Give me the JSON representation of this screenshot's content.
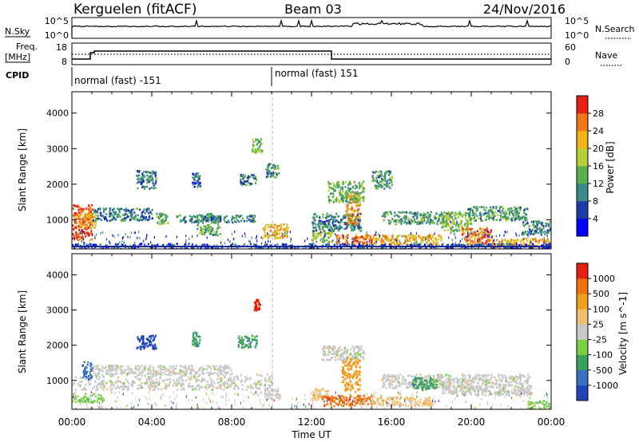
{
  "header": {
    "station": "Kerguelen (fitACF)",
    "beam": "Beam 03",
    "date": "24/Nov/2016"
  },
  "strip_labels": {
    "nsky": "N.Sky",
    "nsearch": "N.Search",
    "freq_line1": "Freq.",
    "freq_line2": "[MHz]",
    "nave": "Nave",
    "cpid": "CPID",
    "nsky_ticks": [
      "10^5",
      "10^0"
    ],
    "nsearch_ticks": [
      "10^5",
      "10^0"
    ],
    "freq_ticks": [
      "18",
      "8"
    ],
    "nave_ticks": [
      "60",
      "0"
    ]
  },
  "cpid_labels": [
    "normal (fast) -151",
    "normal (fast) 151"
  ],
  "chart_data": [
    {
      "type": "heatmap",
      "name": "power",
      "ylabel": "Slant Range [km]",
      "xlabel": "Time UT",
      "ylim": [
        180,
        4600
      ],
      "xlim": [
        0,
        24
      ],
      "x_ticks": [
        "00:00",
        "04:00",
        "08:00",
        "12:00",
        "16:00",
        "20:00",
        "00:00"
      ],
      "y_ticks": [
        "1000",
        "2000",
        "3000",
        "4000"
      ],
      "colorbar": {
        "label": "Power [dB]",
        "ticks": [
          "4",
          "8",
          "12",
          "16",
          "20",
          "24",
          "28"
        ],
        "colors": [
          "#0000ff",
          "#1c3aa8",
          "#3a8a86",
          "#58b04a",
          "#b8d038",
          "#f0b418",
          "#f07818",
          "#e82010"
        ]
      },
      "blobs": [
        {
          "t0": 0.0,
          "t1": 1.0,
          "r0": 450,
          "r1": 1450,
          "v": 28
        },
        {
          "t0": 0.3,
          "t1": 1.2,
          "r0": 800,
          "r1": 1200,
          "v": 22
        },
        {
          "t0": 1.0,
          "t1": 4.0,
          "r0": 1000,
          "r1": 1350,
          "v": 9
        },
        {
          "t0": 3.2,
          "t1": 4.2,
          "r0": 1900,
          "r1": 2400,
          "v": 10
        },
        {
          "t0": 4.2,
          "t1": 4.8,
          "r0": 900,
          "r1": 1200,
          "v": 14
        },
        {
          "t0": 6.2,
          "t1": 7.4,
          "r0": 600,
          "r1": 1200,
          "v": 14
        },
        {
          "t0": 5.2,
          "t1": 9.2,
          "r0": 950,
          "r1": 1150,
          "v": 10
        },
        {
          "t0": 6.0,
          "t1": 6.4,
          "r0": 1950,
          "r1": 2350,
          "v": 8
        },
        {
          "t0": 8.4,
          "t1": 9.2,
          "r0": 2000,
          "r1": 2300,
          "v": 10
        },
        {
          "t0": 9.0,
          "t1": 9.5,
          "r0": 2900,
          "r1": 3300,
          "v": 14
        },
        {
          "t0": 9.5,
          "t1": 10.8,
          "r0": 500,
          "r1": 900,
          "v": 22
        },
        {
          "t0": 9.7,
          "t1": 10.4,
          "r0": 2200,
          "r1": 2600,
          "v": 12
        },
        {
          "t0": 12.0,
          "t1": 13.0,
          "r0": 400,
          "r1": 750,
          "v": 18
        },
        {
          "t0": 12.0,
          "t1": 14.5,
          "r0": 700,
          "r1": 1200,
          "v": 10
        },
        {
          "t0": 13.2,
          "t1": 15.0,
          "r0": 300,
          "r1": 600,
          "v": 26
        },
        {
          "t0": 13.7,
          "t1": 14.4,
          "r0": 900,
          "r1": 1800,
          "v": 24
        },
        {
          "t0": 12.8,
          "t1": 14.6,
          "r0": 1500,
          "r1": 2100,
          "v": 14
        },
        {
          "t0": 15.0,
          "t1": 16.0,
          "r0": 1900,
          "r1": 2400,
          "v": 12
        },
        {
          "t0": 15.0,
          "t1": 18.5,
          "r0": 300,
          "r1": 600,
          "v": 22
        },
        {
          "t0": 15.5,
          "t1": 19.0,
          "r0": 900,
          "r1": 1250,
          "v": 12
        },
        {
          "t0": 18.5,
          "t1": 20.0,
          "r0": 700,
          "r1": 1250,
          "v": 16
        },
        {
          "t0": 19.5,
          "t1": 21.0,
          "r0": 300,
          "r1": 800,
          "v": 26
        },
        {
          "t0": 19.8,
          "t1": 22.8,
          "r0": 1000,
          "r1": 1400,
          "v": 12
        },
        {
          "t0": 21.0,
          "t1": 24.0,
          "r0": 250,
          "r1": 500,
          "v": 24
        },
        {
          "t0": 22.5,
          "t1": 24.0,
          "r0": 600,
          "r1": 1000,
          "v": 10
        },
        {
          "t0": 0.0,
          "t1": 24.0,
          "r0": 190,
          "r1": 350,
          "v": 6
        }
      ]
    },
    {
      "type": "heatmap",
      "name": "velocity",
      "ylabel": "Slant Range [km]",
      "xlabel": "Time UT",
      "ylim": [
        180,
        4600
      ],
      "xlim": [
        0,
        24
      ],
      "x_ticks": [
        "00:00",
        "04:00",
        "08:00",
        "12:00",
        "16:00",
        "20:00",
        "00:00"
      ],
      "y_ticks": [
        "1000",
        "2000",
        "3000",
        "4000"
      ],
      "colorbar": {
        "label": "Velocity [m s^-1]",
        "ticks": [
          "1000",
          "500",
          "100",
          "25",
          "-25",
          "-100",
          "-500",
          "-1000"
        ],
        "colors": [
          "#2244bb",
          "#3a70c0",
          "#3aa060",
          "#7ad040",
          "#c8c8c8",
          "#f0c070",
          "#f0a020",
          "#f07010",
          "#e82010"
        ]
      },
      "blobs": [
        {
          "t0": 0.5,
          "t1": 1.0,
          "r0": 1050,
          "r1": 1550,
          "v": 1
        },
        {
          "t0": 0.0,
          "t1": 1.6,
          "r0": 400,
          "r1": 650,
          "v": 3
        },
        {
          "t0": 0.0,
          "t1": 10.0,
          "r0": 750,
          "r1": 1200,
          "v": 4
        },
        {
          "t0": 1.0,
          "t1": 8.0,
          "r0": 1200,
          "r1": 1450,
          "v": 4
        },
        {
          "t0": 3.2,
          "t1": 4.2,
          "r0": 1900,
          "r1": 2300,
          "v": 0
        },
        {
          "t0": 6.0,
          "t1": 6.4,
          "r0": 2000,
          "r1": 2400,
          "v": 2
        },
        {
          "t0": 8.3,
          "t1": 9.3,
          "r0": 1950,
          "r1": 2300,
          "v": 2
        },
        {
          "t0": 9.1,
          "t1": 9.4,
          "r0": 3000,
          "r1": 3350,
          "v": 8
        },
        {
          "t0": 9.6,
          "t1": 10.4,
          "r0": 500,
          "r1": 800,
          "v": 4
        },
        {
          "t0": 12.0,
          "t1": 12.8,
          "r0": 450,
          "r1": 800,
          "v": 5
        },
        {
          "t0": 12.5,
          "t1": 15.0,
          "r0": 300,
          "r1": 600,
          "v": 7
        },
        {
          "t0": 13.5,
          "t1": 14.4,
          "r0": 700,
          "r1": 1700,
          "v": 6
        },
        {
          "t0": 12.5,
          "t1": 14.6,
          "r0": 1600,
          "r1": 2000,
          "v": 4
        },
        {
          "t0": 15.0,
          "t1": 18.0,
          "r0": 300,
          "r1": 550,
          "v": 5
        },
        {
          "t0": 15.5,
          "t1": 19.0,
          "r0": 800,
          "r1": 1200,
          "v": 4
        },
        {
          "t0": 17.0,
          "t1": 18.3,
          "r0": 750,
          "r1": 1100,
          "v": 2
        },
        {
          "t0": 18.5,
          "t1": 20.0,
          "r0": 650,
          "r1": 1100,
          "v": 4
        },
        {
          "t0": 19.5,
          "t1": 23.0,
          "r0": 600,
          "r1": 1200,
          "v": 4
        },
        {
          "t0": 22.8,
          "t1": 24.0,
          "r0": 200,
          "r1": 450,
          "v": 3
        }
      ]
    }
  ]
}
